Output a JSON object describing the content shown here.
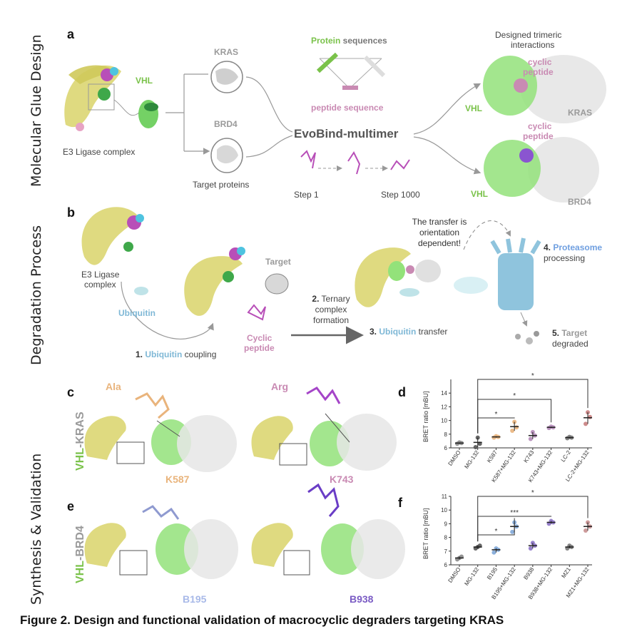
{
  "sections": {
    "a_side": "Molecular Glue Design",
    "b_side": "Degradation Process",
    "cdef_side": "Synthesis & Validation"
  },
  "panel_letters": {
    "a": "a",
    "b": "b",
    "c": "c",
    "d": "d",
    "e": "e",
    "f": "f"
  },
  "panel_a": {
    "vhl": "VHL",
    "e3": "E3 Ligase complex",
    "kras": "KRAS",
    "brd4": "BRD4",
    "targets": "Target proteins",
    "protein_seq_1": "Protein",
    "protein_seq_2": " sequences",
    "peptide_seq_1": "peptide",
    "peptide_seq_2": " sequence",
    "evobind": "EvoBind-multimer",
    "step1": "Step 1",
    "step1000": "Step 1000",
    "designed_1": "Designed trimeric",
    "designed_2": "interactions",
    "cyclic_1": "cyclic",
    "peptide_1": "peptide",
    "vhl_top": "VHL",
    "kras_right": "KRAS",
    "cyclic_2": "cyclic",
    "peptide_2": "peptide",
    "vhl_bot": "VHL",
    "brd4_right": "BRD4"
  },
  "panel_b": {
    "e3_1": "E3 Ligase",
    "e3_2": "complex",
    "ubiquitin": "Ubiquitin",
    "step1_num": "1.",
    "step1_a": "Ubiquitin",
    "step1_b": " coupling",
    "target": "Target",
    "cyclic_1": "Cyclic",
    "cyclic_2": "peptide",
    "step2_num": "2.",
    "step2_a": " Ternary",
    "step2_b": "complex",
    "step2_c": "formation",
    "step3_num": "3.",
    "step3_a": "Ubiquitin",
    "step3_b": " transfer",
    "transfer_1": "The transfer is",
    "transfer_2": "orientation",
    "transfer_3": "dependent!",
    "step4_num": "4.",
    "step4_a": "Proteasome",
    "step4_b": "processing",
    "step5_num": "5.",
    "step5_a": "Target",
    "step5_b": "degraded"
  },
  "panel_c": {
    "ala": "Ala",
    "arg": "Arg",
    "vhl": "VHL",
    "dash": "-",
    "kras": "KRAS",
    "k587": "K587",
    "k743": "K743"
  },
  "panel_e": {
    "vhl": "VHL",
    "dash": "-",
    "brd4": "BRD4",
    "b195": "B195",
    "b938": "B938"
  },
  "caption": "Figure 2. Design and functional validation of macrocyclic degraders targeting KRAS",
  "colors": {
    "green": "#7ac24a",
    "gray": "#9a9a9a",
    "pink": "#c98ab3",
    "ubiquitin_blue": "#7fb8d6",
    "orange": "#e9b47c",
    "yellow_protein": "#d9d46a",
    "magenta": "#b84fb8",
    "proteasome": "#8fc4dd"
  },
  "chart_data": [
    {
      "panel": "d",
      "type": "scatter",
      "ylabel": "BRET ratio [mBU]",
      "ylim": [
        6,
        16
      ],
      "yticks": [
        6,
        8,
        10,
        12,
        14
      ],
      "categories": [
        "DMSO",
        "MG-132",
        "K587",
        "K587+MG-132",
        "K743",
        "K743+MG-132",
        "LC-2",
        "LC-2+MG-132"
      ],
      "values": [
        6.7,
        6.8,
        7.6,
        9.1,
        7.8,
        9.0,
        7.5,
        10.4
      ],
      "points": [
        [
          6.6,
          6.8,
          6.7
        ],
        [
          6.1,
          7.5,
          6.6
        ],
        [
          7.5,
          7.7,
          7.6
        ],
        [
          8.5,
          9.8,
          9.0
        ],
        [
          7.3,
          8.3,
          7.8
        ],
        [
          8.9,
          9.1,
          9.0
        ],
        [
          7.4,
          7.6,
          7.5
        ],
        [
          9.5,
          11.2,
          10.5
        ]
      ],
      "color_map": [
        "#888888",
        "#555555",
        "#e9b47c",
        "#e9b47c",
        "#b48ab8",
        "#b48ab8",
        "#777777",
        "#c87e7e"
      ],
      "significance": [
        {
          "from": "MG-132",
          "to": "K587+MG-132",
          "label": "*"
        },
        {
          "from": "MG-132",
          "to": "K743+MG-132",
          "label": "*"
        },
        {
          "from": "MG-132",
          "to": "LC-2+MG-132",
          "label": "*"
        }
      ]
    },
    {
      "panel": "f",
      "type": "scatter",
      "ylabel": "BRET ratio [mBU]",
      "ylim": [
        6,
        11
      ],
      "yticks": [
        6,
        7,
        8,
        9,
        10,
        11
      ],
      "categories": [
        "DMSO",
        "MG-132",
        "B195",
        "B195+MG-132",
        "B938",
        "B938+MG-132",
        "MZ1",
        "MZ1+MG-132"
      ],
      "values": [
        6.5,
        7.3,
        7.1,
        8.8,
        7.4,
        9.1,
        7.3,
        8.8
      ],
      "points": [
        [
          6.4,
          6.5,
          6.6
        ],
        [
          7.2,
          7.3,
          7.4
        ],
        [
          6.9,
          7.2,
          7.1
        ],
        [
          8.4,
          9.1,
          8.8
        ],
        [
          7.2,
          7.6,
          7.4
        ],
        [
          9.0,
          9.2,
          9.1
        ],
        [
          7.2,
          7.4,
          7.3
        ],
        [
          8.5,
          9.1,
          8.8
        ]
      ],
      "color_map": [
        "#888888",
        "#555555",
        "#7fa7d8",
        "#7fa7d8",
        "#8c73c6",
        "#8c73c6",
        "#777777",
        "#c89090"
      ],
      "significance": [
        {
          "from": "MG-132",
          "to": "B195+MG-132",
          "label": "*"
        },
        {
          "from": "MG-132",
          "to": "B938+MG-132",
          "label": "***"
        },
        {
          "from": "MG-132",
          "to": "MZ1+MG-132",
          "label": "*"
        }
      ]
    }
  ]
}
